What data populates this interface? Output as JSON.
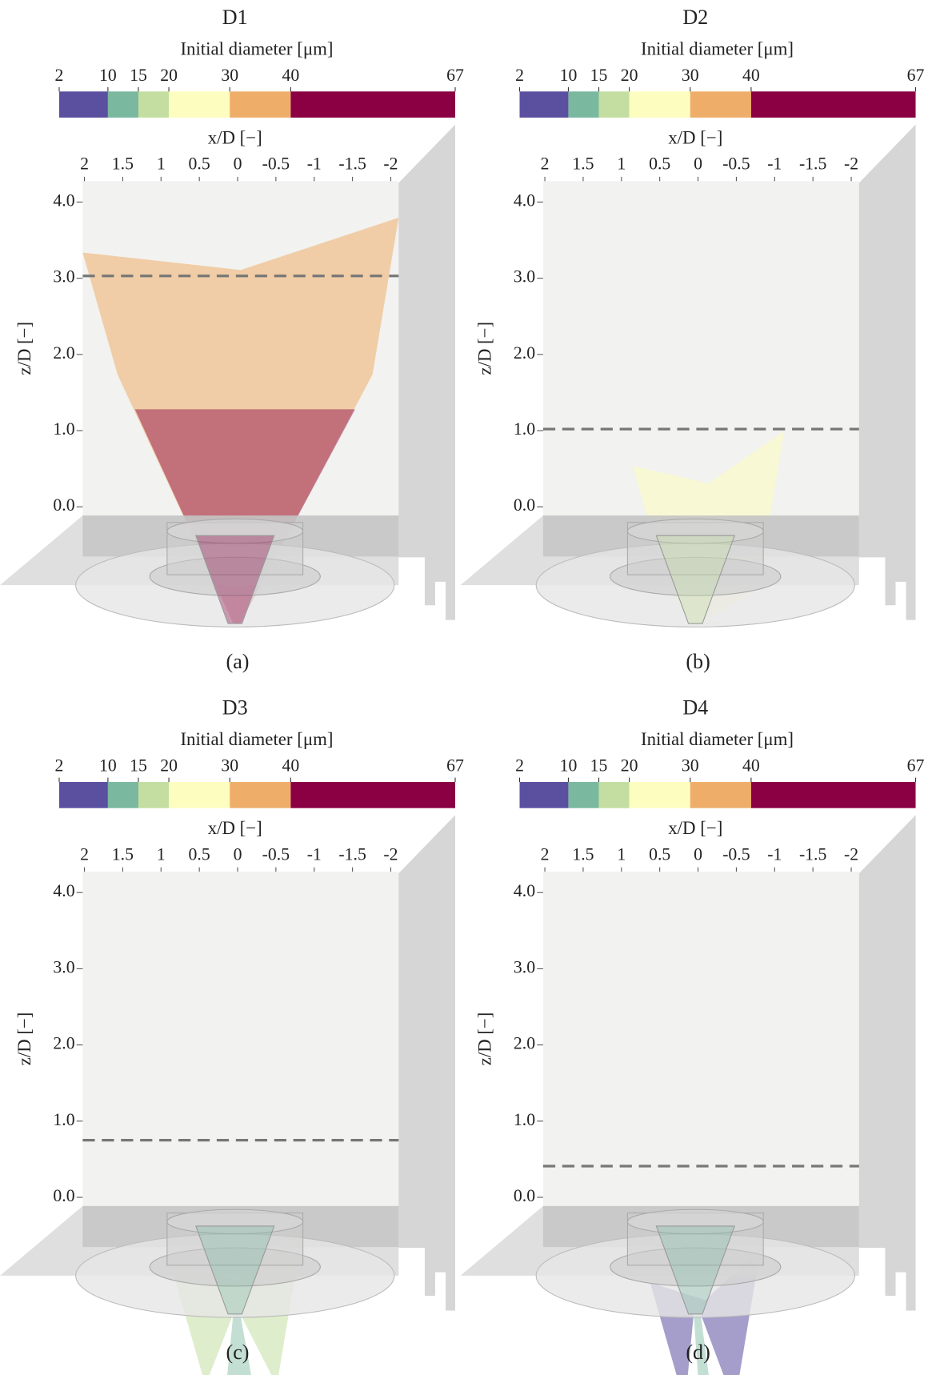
{
  "panels": [
    {
      "title": "D1",
      "caption": "(a)",
      "dashed_z": 3.03,
      "colorbar": {
        "label": "Initial diameter [μm]",
        "ticks": [
          2,
          10,
          15,
          20,
          30,
          40,
          67
        ],
        "colors": [
          "#5b4fa0",
          "#7ab8a0",
          "#c3dea0",
          "#fdfdc0",
          "#eeae6a",
          "#8a0043"
        ]
      },
      "x_axis": {
        "label": "x/D [−]",
        "ticks": [
          2,
          1.5,
          1,
          0.5,
          0,
          -0.5,
          -1,
          -1.5,
          -2
        ]
      },
      "y_axis": {
        "label": "z/D [−]",
        "ticks": [
          {
            "value": 4,
            "label": "4.0"
          },
          {
            "value": 3,
            "label": "3.0"
          },
          {
            "value": 2,
            "label": "2.0"
          },
          {
            "value": 1,
            "label": "1.0"
          },
          {
            "value": 0,
            "label": "0.0"
          }
        ]
      }
    },
    {
      "title": "D2",
      "caption": "(b)",
      "dashed_z": 1.02,
      "colorbar": {
        "label": "Initial diameter [μm]",
        "ticks": [
          2,
          10,
          15,
          20,
          30,
          40,
          67
        ],
        "colors": [
          "#5b4fa0",
          "#7ab8a0",
          "#c3dea0",
          "#fdfdc0",
          "#eeae6a",
          "#8a0043"
        ]
      },
      "x_axis": {
        "label": "x/D [−]",
        "ticks": [
          2,
          1.5,
          1,
          0.5,
          0,
          -0.5,
          -1,
          -1.5,
          -2
        ]
      },
      "y_axis": {
        "label": "z/D [−]",
        "ticks": [
          {
            "value": 4,
            "label": "4.0"
          },
          {
            "value": 3,
            "label": "3.0"
          },
          {
            "value": 2,
            "label": "2.0"
          },
          {
            "value": 1,
            "label": "1.0"
          },
          {
            "value": 0,
            "label": "0.0"
          }
        ]
      }
    },
    {
      "title": "D3",
      "caption": "(c)",
      "dashed_z": 0.75,
      "colorbar": {
        "label": "Initial diameter [μm]",
        "ticks": [
          2,
          10,
          15,
          20,
          30,
          40,
          67
        ],
        "colors": [
          "#5b4fa0",
          "#7ab8a0",
          "#c3dea0",
          "#fdfdc0",
          "#eeae6a",
          "#8a0043"
        ]
      },
      "x_axis": {
        "label": "x/D [−]",
        "ticks": [
          2,
          1.5,
          1,
          0.5,
          0,
          -0.5,
          -1,
          -1.5,
          -2
        ]
      },
      "y_axis": {
        "label": "z/D [−]",
        "ticks": [
          {
            "value": 4,
            "label": "4.0"
          },
          {
            "value": 3,
            "label": "3.0"
          },
          {
            "value": 2,
            "label": "2.0"
          },
          {
            "value": 1,
            "label": "1.0"
          },
          {
            "value": 0,
            "label": "0.0"
          }
        ]
      }
    },
    {
      "title": "D4",
      "caption": "(d)",
      "dashed_z": 0.41,
      "colorbar": {
        "label": "Initial diameter [μm]",
        "ticks": [
          2,
          10,
          15,
          20,
          30,
          40,
          67
        ],
        "colors": [
          "#5b4fa0",
          "#7ab8a0",
          "#c3dea0",
          "#fdfdc0",
          "#eeae6a",
          "#8a0043"
        ]
      },
      "x_axis": {
        "label": "x/D [−]",
        "ticks": [
          2,
          1.5,
          1,
          0.5,
          0,
          -0.5,
          -1,
          -1.5,
          -2
        ]
      },
      "y_axis": {
        "label": "z/D [−]",
        "ticks": [
          {
            "value": 4,
            "label": "4.0"
          },
          {
            "value": 3,
            "label": "3.0"
          },
          {
            "value": 2,
            "label": "2.0"
          },
          {
            "value": 1,
            "label": "1.0"
          },
          {
            "value": 0,
            "label": "0.0"
          }
        ]
      }
    }
  ]
}
